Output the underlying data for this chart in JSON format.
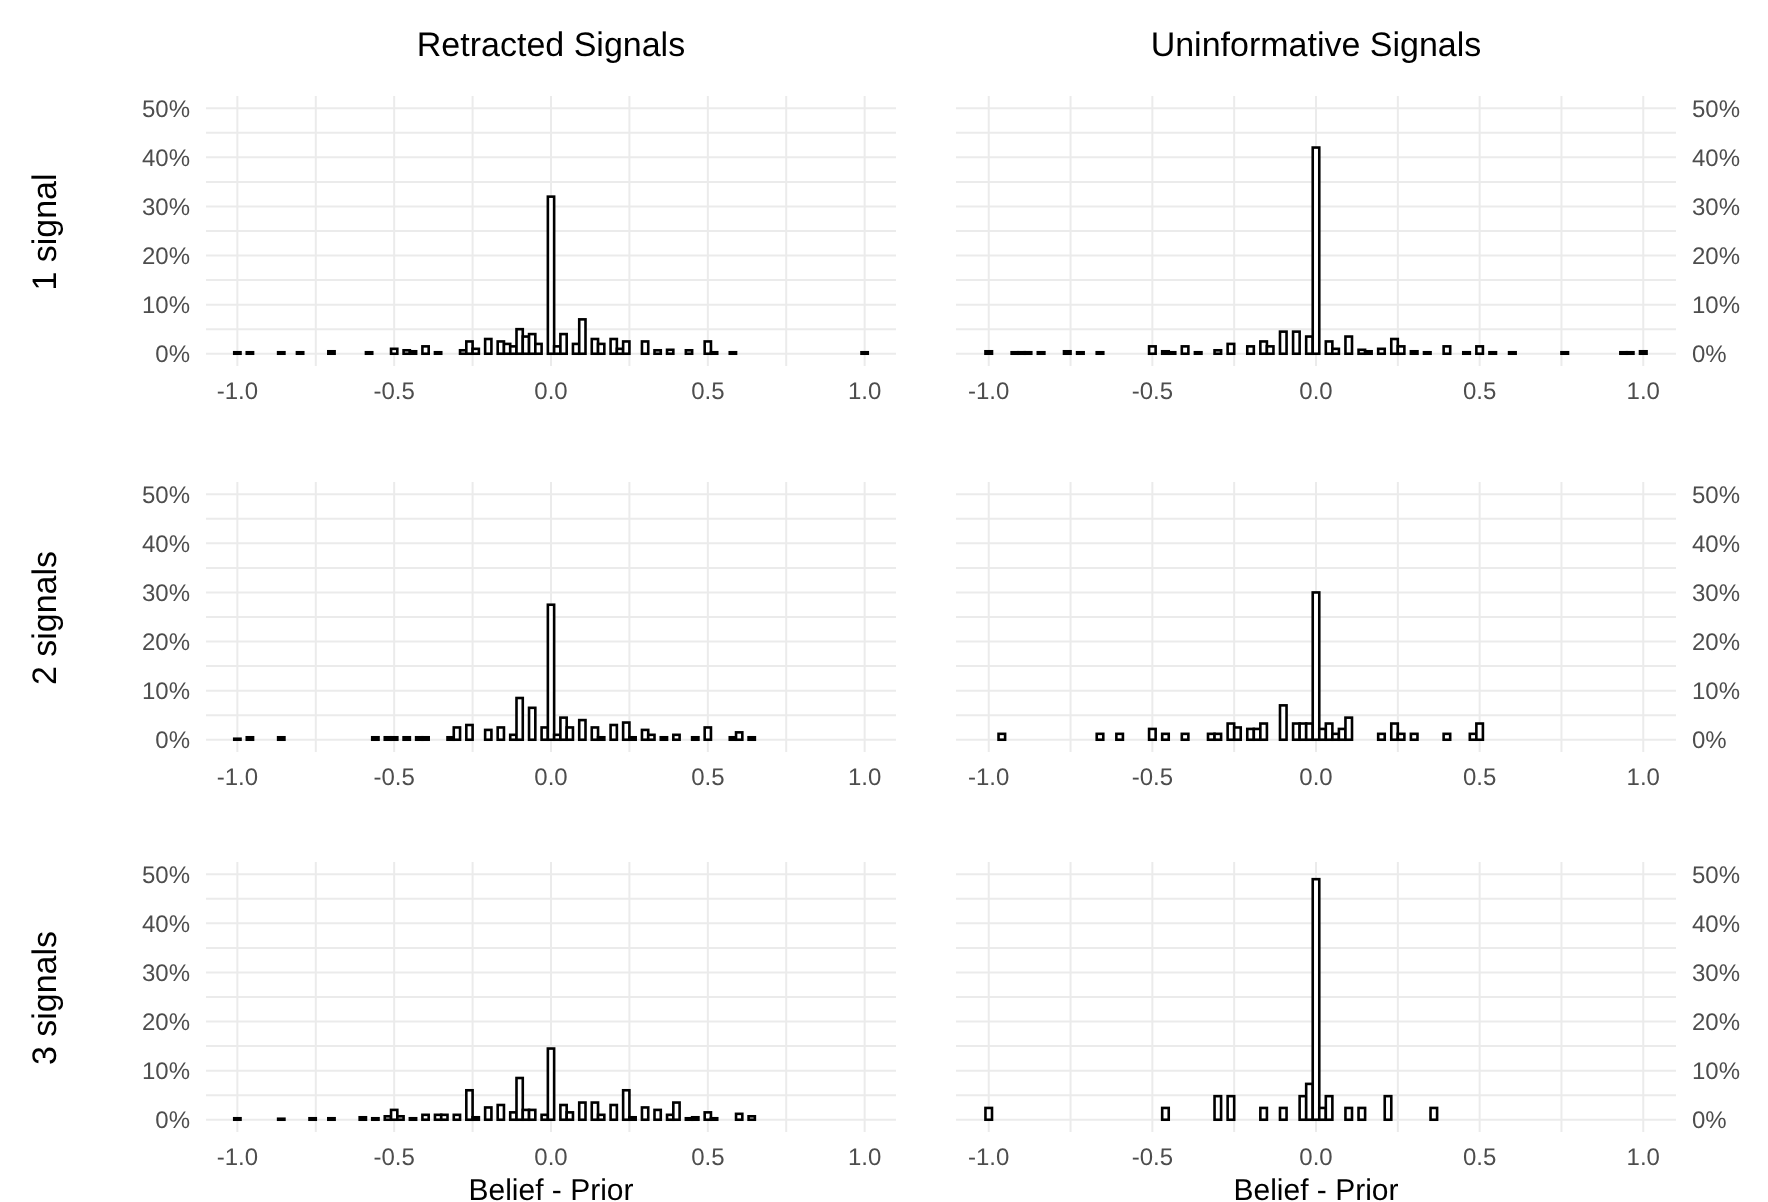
{
  "chart_data": [
    {
      "type": "histogram",
      "title": "Retracted Signals",
      "ylabel": "1 signal",
      "color": "#000000",
      "grid": true,
      "bins": [
        -1.01,
        -0.99,
        -0.97,
        -0.95,
        -0.93,
        -0.91,
        -0.89,
        -0.87,
        -0.85,
        -0.83,
        -0.81,
        -0.79,
        -0.77,
        -0.75,
        -0.73,
        -0.71,
        -0.69,
        -0.67,
        -0.65,
        -0.63,
        -0.61,
        -0.59,
        -0.57,
        -0.55,
        -0.53,
        -0.51,
        -0.49,
        -0.47,
        -0.45,
        -0.43,
        -0.41,
        -0.39,
        -0.37,
        -0.35,
        -0.33,
        -0.31,
        -0.29,
        -0.27,
        -0.25,
        -0.23,
        -0.21,
        -0.19,
        -0.17,
        -0.15,
        -0.13,
        -0.11,
        -0.09,
        -0.07,
        -0.05,
        -0.03,
        -0.01,
        0.01,
        0.03,
        0.05,
        0.07,
        0.09,
        0.11,
        0.13,
        0.15,
        0.17,
        0.19,
        0.21,
        0.23,
        0.25,
        0.27,
        0.29,
        0.31,
        0.33,
        0.35,
        0.37,
        0.39,
        0.41,
        0.43,
        0.45,
        0.47,
        0.49,
        0.51,
        0.53,
        0.55,
        0.57,
        0.59,
        0.61,
        0.63,
        0.65,
        0.67,
        0.69,
        0.71,
        0.73,
        0.75,
        0.77,
        0.79,
        0.81,
        0.83,
        0.85,
        0.87,
        0.89,
        0.91,
        0.93,
        0.95,
        0.97,
        0.99,
        1.01
      ],
      "values": [
        0.3,
        0,
        0.3,
        0,
        0,
        0,
        0,
        0.3,
        0,
        0,
        0.3,
        0,
        0,
        0,
        0,
        0.5,
        0,
        0,
        0,
        0,
        0,
        0.3,
        0,
        0,
        0,
        1,
        0,
        0.7,
        0.5,
        0,
        1.5,
        0,
        0.3,
        0,
        0,
        0,
        0.7,
        2.5,
        1,
        0,
        3,
        0,
        2.5,
        2,
        1.5,
        5,
        3.5,
        4,
        2,
        0,
        32,
        1.5,
        4,
        0,
        2,
        7,
        0,
        3,
        2,
        0,
        3,
        1,
        2.5,
        0,
        0,
        2.5,
        0,
        0.7,
        0,
        0.8,
        0,
        0,
        0.7,
        0,
        0,
        2.5,
        0.3,
        0,
        0,
        0.3,
        0,
        0,
        0,
        0,
        0,
        0,
        0,
        0,
        0,
        0,
        0,
        0,
        0,
        0,
        0,
        0,
        0,
        0,
        0,
        0,
        0.3
      ],
      "xlim": [
        -1.1,
        1.1
      ],
      "xticks": [
        {
          "value": -1,
          "label": "-1.0"
        },
        {
          "value": -0.75,
          "label": null
        },
        {
          "value": -0.5,
          "label": "-0.5"
        },
        {
          "value": -0.25,
          "label": null
        },
        {
          "value": 0,
          "label": "0.0"
        },
        {
          "value": 0.25,
          "label": null
        },
        {
          "value": 0.5,
          "label": "0.5"
        },
        {
          "value": 0.75,
          "label": null
        },
        {
          "value": 1,
          "label": "1.0"
        }
      ],
      "ylim": [
        -2.5,
        52.5
      ],
      "yticks": [
        {
          "value": 0,
          "label": "0%"
        },
        {
          "value": 5,
          "label": null
        },
        {
          "value": 10,
          "label": "10%"
        },
        {
          "value": 15,
          "label": null
        },
        {
          "value": 20,
          "label": "20%"
        },
        {
          "value": 25,
          "label": null
        },
        {
          "value": 30,
          "label": "30%"
        },
        {
          "value": 35,
          "label": null
        },
        {
          "value": 40,
          "label": "40%"
        },
        {
          "value": 45,
          "label": null
        },
        {
          "value": 50,
          "label": "50%"
        }
      ]
    },
    {
      "type": "histogram",
      "title": "Uninformative Signals",
      "color": "#000000",
      "grid": true,
      "bins": [
        -1.01,
        -0.99,
        -0.97,
        -0.95,
        -0.93,
        -0.91,
        -0.89,
        -0.87,
        -0.85,
        -0.83,
        -0.81,
        -0.79,
        -0.77,
        -0.75,
        -0.73,
        -0.71,
        -0.69,
        -0.67,
        -0.65,
        -0.63,
        -0.61,
        -0.59,
        -0.57,
        -0.55,
        -0.53,
        -0.51,
        -0.49,
        -0.47,
        -0.45,
        -0.43,
        -0.41,
        -0.39,
        -0.37,
        -0.35,
        -0.33,
        -0.31,
        -0.29,
        -0.27,
        -0.25,
        -0.23,
        -0.21,
        -0.19,
        -0.17,
        -0.15,
        -0.13,
        -0.11,
        -0.09,
        -0.07,
        -0.05,
        -0.03,
        -0.01,
        0.01,
        0.03,
        0.05,
        0.07,
        0.09,
        0.11,
        0.13,
        0.15,
        0.17,
        0.19,
        0.21,
        0.23,
        0.25,
        0.27,
        0.29,
        0.31,
        0.33,
        0.35,
        0.37,
        0.39,
        0.41,
        0.43,
        0.45,
        0.47,
        0.49,
        0.51,
        0.53,
        0.55,
        0.57,
        0.59,
        0.61,
        0.63,
        0.65,
        0.67,
        0.69,
        0.71,
        0.73,
        0.75,
        0.77,
        0.79,
        0.81,
        0.83,
        0.85,
        0.87,
        0.89,
        0.91,
        0.93,
        0.95,
        0.97,
        0.99,
        1.01
      ],
      "values": [
        0.5,
        0,
        0,
        0,
        0.3,
        0.3,
        0.3,
        0,
        0.3,
        0,
        0,
        0,
        0.5,
        0,
        0.3,
        0,
        0,
        0.3,
        0,
        0,
        0,
        0,
        0,
        0,
        0,
        1.5,
        0,
        0.5,
        0.3,
        0,
        1.5,
        0,
        0.3,
        0,
        0,
        0.7,
        0,
        2,
        0,
        0,
        1.5,
        0,
        2.5,
        1.5,
        0,
        4.5,
        0,
        4.5,
        0,
        3.5,
        42,
        0,
        2.5,
        1,
        0,
        3.5,
        0,
        0.8,
        0.5,
        0,
        1,
        0,
        3,
        1.5,
        0,
        0.5,
        0,
        0.3,
        0,
        0,
        1.5,
        0,
        0,
        0.3,
        0,
        1.5,
        0,
        0.3,
        0,
        0,
        0.3,
        0,
        0,
        0,
        0,
        0,
        0,
        0,
        0.3,
        0,
        0,
        0,
        0,
        0,
        0,
        0,
        0,
        0.3,
        0.3,
        0,
        0.5
      ],
      "xlim": [
        -1.1,
        1.1
      ],
      "xticks": [
        {
          "value": -1,
          "label": "-1.0"
        },
        {
          "value": -0.75,
          "label": null
        },
        {
          "value": -0.5,
          "label": "-0.5"
        },
        {
          "value": -0.25,
          "label": null
        },
        {
          "value": 0,
          "label": "0.0"
        },
        {
          "value": 0.25,
          "label": null
        },
        {
          "value": 0.5,
          "label": "0.5"
        },
        {
          "value": 0.75,
          "label": null
        },
        {
          "value": 1,
          "label": "1.0"
        }
      ],
      "ylim": [
        -2.5,
        52.5
      ],
      "yticks": [
        {
          "value": 0,
          "label": "0%"
        },
        {
          "value": 5,
          "label": null
        },
        {
          "value": 10,
          "label": "10%"
        },
        {
          "value": 15,
          "label": null
        },
        {
          "value": 20,
          "label": "20%"
        },
        {
          "value": 25,
          "label": null
        },
        {
          "value": 30,
          "label": "30%"
        },
        {
          "value": 35,
          "label": null
        },
        {
          "value": 40,
          "label": "40%"
        },
        {
          "value": 45,
          "label": null
        },
        {
          "value": 50,
          "label": "50%"
        }
      ]
    },
    {
      "type": "histogram",
      "ylabel": "2 signals",
      "color": "#000000",
      "grid": true,
      "bins": [
        -1.01,
        -0.99,
        -0.97,
        -0.95,
        -0.93,
        -0.91,
        -0.89,
        -0.87,
        -0.85,
        -0.83,
        -0.81,
        -0.79,
        -0.77,
        -0.75,
        -0.73,
        -0.71,
        -0.69,
        -0.67,
        -0.65,
        -0.63,
        -0.61,
        -0.59,
        -0.57,
        -0.55,
        -0.53,
        -0.51,
        -0.49,
        -0.47,
        -0.45,
        -0.43,
        -0.41,
        -0.39,
        -0.37,
        -0.35,
        -0.33,
        -0.31,
        -0.29,
        -0.27,
        -0.25,
        -0.23,
        -0.21,
        -0.19,
        -0.17,
        -0.15,
        -0.13,
        -0.11,
        -0.09,
        -0.07,
        -0.05,
        -0.03,
        -0.01,
        0.01,
        0.03,
        0.05,
        0.07,
        0.09,
        0.11,
        0.13,
        0.15,
        0.17,
        0.19,
        0.21,
        0.23,
        0.25,
        0.27,
        0.29,
        0.31,
        0.33,
        0.35,
        0.37,
        0.39,
        0.41,
        0.43,
        0.45,
        0.47,
        0.49,
        0.51,
        0.53,
        0.55,
        0.57,
        0.59,
        0.61,
        0.63,
        0.65,
        0.67,
        0.69,
        0.71,
        0.73,
        0.75,
        0.77,
        0.79,
        0.81,
        0.83,
        0.85,
        0.87,
        0.89,
        0.91,
        0.93,
        0.95,
        0.97,
        0.99,
        1.01
      ],
      "values": [
        0.2,
        0,
        0.5,
        0,
        0,
        0,
        0,
        0.5,
        0,
        0,
        0,
        0,
        0,
        0,
        0,
        0,
        0,
        0,
        0,
        0,
        0,
        0,
        0.5,
        0,
        0.5,
        0.5,
        0,
        0.5,
        0,
        0.5,
        0.5,
        0,
        0,
        0,
        0.5,
        2.5,
        0,
        3,
        0,
        0,
        2,
        0,
        2.5,
        0,
        1,
        8.5,
        0,
        6.5,
        0,
        2.5,
        27.5,
        1,
        4.5,
        2.5,
        0,
        4,
        0,
        2.5,
        0.5,
        0,
        3,
        0,
        3.5,
        0.5,
        0,
        2,
        1,
        0,
        0.5,
        0,
        1,
        0,
        0,
        0.5,
        0,
        2.5,
        0,
        0,
        0,
        0.5,
        1.5,
        0,
        0.5,
        0,
        0,
        0,
        0,
        0,
        0,
        0,
        0,
        0,
        0,
        0,
        0,
        0,
        0,
        0,
        0,
        0,
        0
      ],
      "xlim": [
        -1.1,
        1.1
      ],
      "xticks": [
        {
          "value": -1,
          "label": "-1.0"
        },
        {
          "value": -0.75,
          "label": null
        },
        {
          "value": -0.5,
          "label": "-0.5"
        },
        {
          "value": -0.25,
          "label": null
        },
        {
          "value": 0,
          "label": "0.0"
        },
        {
          "value": 0.25,
          "label": null
        },
        {
          "value": 0.5,
          "label": "0.5"
        },
        {
          "value": 0.75,
          "label": null
        },
        {
          "value": 1,
          "label": "1.0"
        }
      ],
      "ylim": [
        -2.5,
        52.5
      ],
      "yticks": [
        {
          "value": 0,
          "label": "0%"
        },
        {
          "value": 5,
          "label": null
        },
        {
          "value": 10,
          "label": "10%"
        },
        {
          "value": 15,
          "label": null
        },
        {
          "value": 20,
          "label": "20%"
        },
        {
          "value": 25,
          "label": null
        },
        {
          "value": 30,
          "label": "30%"
        },
        {
          "value": 35,
          "label": null
        },
        {
          "value": 40,
          "label": "40%"
        },
        {
          "value": 45,
          "label": null
        },
        {
          "value": 50,
          "label": "50%"
        }
      ]
    },
    {
      "type": "histogram",
      "color": "#000000",
      "grid": true,
      "bins": [
        -1.01,
        -0.99,
        -0.97,
        -0.95,
        -0.93,
        -0.91,
        -0.89,
        -0.87,
        -0.85,
        -0.83,
        -0.81,
        -0.79,
        -0.77,
        -0.75,
        -0.73,
        -0.71,
        -0.69,
        -0.67,
        -0.65,
        -0.63,
        -0.61,
        -0.59,
        -0.57,
        -0.55,
        -0.53,
        -0.51,
        -0.49,
        -0.47,
        -0.45,
        -0.43,
        -0.41,
        -0.39,
        -0.37,
        -0.35,
        -0.33,
        -0.31,
        -0.29,
        -0.27,
        -0.25,
        -0.23,
        -0.21,
        -0.19,
        -0.17,
        -0.15,
        -0.13,
        -0.11,
        -0.09,
        -0.07,
        -0.05,
        -0.03,
        -0.01,
        0.01,
        0.03,
        0.05,
        0.07,
        0.09,
        0.11,
        0.13,
        0.15,
        0.17,
        0.19,
        0.21,
        0.23,
        0.25,
        0.27,
        0.29,
        0.31,
        0.33,
        0.35,
        0.37,
        0.39,
        0.41,
        0.43,
        0.45,
        0.47,
        0.49,
        0.51,
        0.53,
        0.55,
        0.57,
        0.59,
        0.61,
        0.63,
        0.65,
        0.67,
        0.69,
        0.71,
        0.73,
        0.75,
        0.77,
        0.79,
        0.81,
        0.83,
        0.85,
        0.87,
        0.89,
        0.91,
        0.93,
        0.95,
        0.97,
        0.99,
        1.01
      ],
      "values": [
        0,
        0,
        1.2,
        0,
        0,
        0,
        0,
        0,
        0,
        0,
        0,
        0,
        0,
        0,
        0,
        0,
        0,
        1.2,
        0,
        0,
        1.2,
        0,
        0,
        0,
        0,
        2.2,
        0,
        1.2,
        0,
        0,
        1.2,
        0,
        0,
        0,
        1.2,
        1.2,
        0,
        3.3,
        2.5,
        0,
        2.2,
        2.2,
        3.3,
        0,
        0,
        7,
        0,
        3.3,
        3.3,
        3.3,
        30,
        2.2,
        3.3,
        1.2,
        2.2,
        4.5,
        0,
        0,
        0,
        0,
        1.2,
        0,
        3.3,
        1.2,
        0,
        1.2,
        0,
        0,
        0,
        0,
        1.2,
        0,
        0,
        0,
        1.2,
        3.3,
        0,
        0,
        0,
        0,
        0,
        0,
        0,
        0,
        0,
        0,
        0,
        0,
        0,
        0,
        0,
        0,
        0,
        0,
        0,
        0,
        0,
        0,
        0,
        0,
        0
      ],
      "xlim": [
        -1.1,
        1.1
      ],
      "xticks": [
        {
          "value": -1,
          "label": "-1.0"
        },
        {
          "value": -0.75,
          "label": null
        },
        {
          "value": -0.5,
          "label": "-0.5"
        },
        {
          "value": -0.25,
          "label": null
        },
        {
          "value": 0,
          "label": "0.0"
        },
        {
          "value": 0.25,
          "label": null
        },
        {
          "value": 0.5,
          "label": "0.5"
        },
        {
          "value": 0.75,
          "label": null
        },
        {
          "value": 1,
          "label": "1.0"
        }
      ],
      "ylim": [
        -2.5,
        52.5
      ],
      "yticks": [
        {
          "value": 0,
          "label": "0%"
        },
        {
          "value": 5,
          "label": null
        },
        {
          "value": 10,
          "label": "10%"
        },
        {
          "value": 15,
          "label": null
        },
        {
          "value": 20,
          "label": "20%"
        },
        {
          "value": 25,
          "label": null
        },
        {
          "value": 30,
          "label": "30%"
        },
        {
          "value": 35,
          "label": null
        },
        {
          "value": 40,
          "label": "40%"
        },
        {
          "value": 45,
          "label": null
        },
        {
          "value": 50,
          "label": "50%"
        }
      ]
    },
    {
      "type": "histogram",
      "ylabel": "3 signals",
      "xlabel": "Belief - Prior",
      "color": "#000000",
      "grid": true,
      "bins": [
        -1.01,
        -0.99,
        -0.97,
        -0.95,
        -0.93,
        -0.91,
        -0.89,
        -0.87,
        -0.85,
        -0.83,
        -0.81,
        -0.79,
        -0.77,
        -0.75,
        -0.73,
        -0.71,
        -0.69,
        -0.67,
        -0.65,
        -0.63,
        -0.61,
        -0.59,
        -0.57,
        -0.55,
        -0.53,
        -0.51,
        -0.49,
        -0.47,
        -0.45,
        -0.43,
        -0.41,
        -0.39,
        -0.37,
        -0.35,
        -0.33,
        -0.31,
        -0.29,
        -0.27,
        -0.25,
        -0.23,
        -0.21,
        -0.19,
        -0.17,
        -0.15,
        -0.13,
        -0.11,
        -0.09,
        -0.07,
        -0.05,
        -0.03,
        -0.01,
        0.01,
        0.03,
        0.05,
        0.07,
        0.09,
        0.11,
        0.13,
        0.15,
        0.17,
        0.19,
        0.21,
        0.23,
        0.25,
        0.27,
        0.29,
        0.31,
        0.33,
        0.35,
        0.37,
        0.39,
        0.41,
        0.43,
        0.45,
        0.47,
        0.49,
        0.51,
        0.53,
        0.55,
        0.57,
        0.59,
        0.61,
        0.63,
        0.65,
        0.67,
        0.69,
        0.71,
        0.73,
        0.75,
        0.77,
        0.79,
        0.81,
        0.83,
        0.85,
        0.87,
        0.89,
        0.91,
        0.93,
        0.95,
        0.97,
        0.99,
        1.01
      ],
      "values": [
        0.3,
        0,
        0,
        0,
        0,
        0,
        0,
        0.2,
        0,
        0,
        0,
        0,
        0.3,
        0,
        0,
        0.3,
        0,
        0,
        0,
        0,
        0.5,
        0,
        0.3,
        0,
        0.7,
        2,
        0.7,
        0,
        0.3,
        0,
        1,
        0,
        1,
        1,
        0,
        1,
        0,
        6,
        0.5,
        0,
        2.5,
        0,
        3,
        0,
        1.5,
        8.5,
        2,
        2,
        0,
        1,
        14.5,
        0,
        3,
        1.5,
        0,
        3.5,
        0,
        3.5,
        1,
        0,
        3,
        0,
        6,
        0.5,
        0,
        2.5,
        0,
        2,
        0,
        1,
        3.5,
        0,
        0.3,
        0.5,
        0,
        1.5,
        0.3,
        0,
        0,
        0,
        1.2,
        0,
        0.7,
        0,
        0,
        0,
        0,
        0,
        0,
        0,
        0,
        0,
        0,
        0,
        0,
        0,
        0,
        0,
        0,
        0,
        0
      ],
      "xlim": [
        -1.1,
        1.1
      ],
      "xticks": [
        {
          "value": -1,
          "label": "-1.0"
        },
        {
          "value": -0.75,
          "label": null
        },
        {
          "value": -0.5,
          "label": "-0.5"
        },
        {
          "value": -0.25,
          "label": null
        },
        {
          "value": 0,
          "label": "0.0"
        },
        {
          "value": 0.25,
          "label": null
        },
        {
          "value": 0.5,
          "label": "0.5"
        },
        {
          "value": 0.75,
          "label": null
        },
        {
          "value": 1,
          "label": "1.0"
        }
      ],
      "ylim": [
        -2.5,
        52.5
      ],
      "yticks": [
        {
          "value": 0,
          "label": "0%"
        },
        {
          "value": 5,
          "label": null
        },
        {
          "value": 10,
          "label": "10%"
        },
        {
          "value": 15,
          "label": null
        },
        {
          "value": 20,
          "label": "20%"
        },
        {
          "value": 25,
          "label": null
        },
        {
          "value": 30,
          "label": "30%"
        },
        {
          "value": 35,
          "label": null
        },
        {
          "value": 40,
          "label": "40%"
        },
        {
          "value": 45,
          "label": null
        },
        {
          "value": 50,
          "label": "50%"
        }
      ]
    },
    {
      "type": "histogram",
      "xlabel": "Belief - Prior",
      "color": "#000000",
      "grid": true,
      "bins": [
        -1.01,
        -0.99,
        -0.97,
        -0.95,
        -0.93,
        -0.91,
        -0.89,
        -0.87,
        -0.85,
        -0.83,
        -0.81,
        -0.79,
        -0.77,
        -0.75,
        -0.73,
        -0.71,
        -0.69,
        -0.67,
        -0.65,
        -0.63,
        -0.61,
        -0.59,
        -0.57,
        -0.55,
        -0.53,
        -0.51,
        -0.49,
        -0.47,
        -0.45,
        -0.43,
        -0.41,
        -0.39,
        -0.37,
        -0.35,
        -0.33,
        -0.31,
        -0.29,
        -0.27,
        -0.25,
        -0.23,
        -0.21,
        -0.19,
        -0.17,
        -0.15,
        -0.13,
        -0.11,
        -0.09,
        -0.07,
        -0.05,
        -0.03,
        -0.01,
        0.01,
        0.03,
        0.05,
        0.07,
        0.09,
        0.11,
        0.13,
        0.15,
        0.17,
        0.19,
        0.21,
        0.23,
        0.25,
        0.27,
        0.29,
        0.31,
        0.33,
        0.35,
        0.37,
        0.39,
        0.41,
        0.43,
        0.45,
        0.47,
        0.49,
        0.51,
        0.53,
        0.55,
        0.57,
        0.59,
        0.61,
        0.63,
        0.65,
        0.67,
        0.69,
        0.71,
        0.73,
        0.75,
        0.77,
        0.79,
        0.81,
        0.83,
        0.85,
        0.87,
        0.89,
        0.91,
        0.93,
        0.95,
        0.97,
        0.99,
        1.01
      ],
      "values": [
        2.4,
        0,
        0,
        0,
        0,
        0,
        0,
        0,
        0,
        0,
        0,
        0,
        0,
        0,
        0,
        0,
        0,
        0,
        0,
        0,
        0,
        0,
        0,
        0,
        0,
        0,
        0,
        2.4,
        0,
        0,
        0,
        0,
        0,
        0,
        0,
        4.8,
        0,
        4.8,
        0,
        0,
        0,
        0,
        2.4,
        0,
        0,
        2.4,
        0,
        0,
        4.8,
        7.3,
        49,
        2.4,
        4.8,
        0,
        0,
        2.4,
        0,
        2.4,
        0,
        0,
        0,
        4.8,
        0,
        0,
        0,
        0,
        0,
        0,
        2.4,
        0,
        0,
        0,
        0,
        0,
        0,
        0,
        0,
        0,
        0,
        0,
        0,
        0,
        0,
        0,
        0,
        0,
        0,
        0,
        0,
        0,
        0,
        0,
        0,
        0,
        0,
        0,
        0,
        0,
        0,
        0,
        0
      ],
      "xlim": [
        -1.1,
        1.1
      ],
      "xticks": [
        {
          "value": -1,
          "label": "-1.0"
        },
        {
          "value": -0.75,
          "label": null
        },
        {
          "value": -0.5,
          "label": "-0.5"
        },
        {
          "value": -0.25,
          "label": null
        },
        {
          "value": 0,
          "label": "0.0"
        },
        {
          "value": 0.25,
          "label": null
        },
        {
          "value": 0.5,
          "label": "0.5"
        },
        {
          "value": 0.75,
          "label": null
        },
        {
          "value": 1,
          "label": "1.0"
        }
      ],
      "ylim": [
        -2.5,
        52.5
      ],
      "yticks": [
        {
          "value": 0,
          "label": "0%"
        },
        {
          "value": 5,
          "label": null
        },
        {
          "value": 10,
          "label": "10%"
        },
        {
          "value": 15,
          "label": null
        },
        {
          "value": 20,
          "label": "20%"
        },
        {
          "value": 25,
          "label": null
        },
        {
          "value": 30,
          "label": "30%"
        },
        {
          "value": 35,
          "label": null
        },
        {
          "value": 40,
          "label": "40%"
        },
        {
          "value": 45,
          "label": null
        },
        {
          "value": 50,
          "label": "50%"
        }
      ]
    }
  ]
}
